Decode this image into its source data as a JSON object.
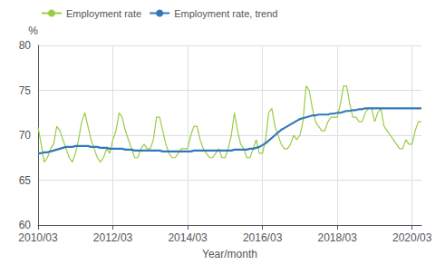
{
  "chart_data": {
    "type": "line",
    "title": "",
    "xlabel": "Year/month",
    "ylabel": "%",
    "categories": [
      "2010/03",
      null,
      null,
      null,
      null,
      null,
      null,
      null,
      null,
      null,
      null,
      null,
      null,
      null,
      null,
      null,
      null,
      null,
      null,
      null,
      null,
      null,
      null,
      null,
      "2012/03",
      null,
      null,
      null,
      null,
      null,
      null,
      null,
      null,
      null,
      null,
      null,
      null,
      null,
      null,
      null,
      null,
      null,
      null,
      null,
      null,
      null,
      null,
      null,
      "2014/03",
      null,
      null,
      null,
      null,
      null,
      null,
      null,
      null,
      null,
      null,
      null,
      null,
      null,
      null,
      null,
      null,
      null,
      null,
      null,
      null,
      null,
      null,
      null,
      "2016/03",
      null,
      null,
      null,
      null,
      null,
      null,
      null,
      null,
      null,
      null,
      null,
      null,
      null,
      null,
      null,
      null,
      null,
      null,
      null,
      null,
      null,
      null,
      null,
      "2018/03",
      null,
      null,
      null,
      null,
      null,
      null,
      null,
      null,
      null,
      null,
      null,
      null,
      null,
      null,
      null,
      null,
      null,
      null,
      null,
      null,
      null,
      null,
      null,
      "2020/03",
      null,
      null,
      null
    ],
    "series": [
      {
        "name": "Employment rate",
        "color": "#99cc44",
        "values": [
          70.9,
          69.0,
          67.0,
          67.5,
          68.5,
          69.0,
          71.0,
          70.5,
          69.5,
          68.5,
          67.5,
          67.0,
          68.0,
          69.5,
          71.5,
          72.5,
          71.0,
          69.5,
          68.5,
          67.5,
          67.0,
          67.5,
          68.5,
          68.0,
          69.5,
          70.5,
          72.5,
          72.0,
          70.5,
          69.5,
          68.5,
          67.5,
          67.5,
          68.5,
          69.0,
          68.5,
          68.5,
          69.5,
          72.0,
          72.0,
          70.5,
          69.0,
          68.0,
          67.5,
          67.5,
          68.0,
          68.5,
          68.5,
          68.5,
          70.0,
          71.0,
          71.0,
          69.5,
          68.5,
          68.0,
          67.5,
          67.5,
          68.0,
          68.5,
          67.5,
          67.5,
          68.5,
          70.0,
          72.5,
          70.5,
          69.0,
          68.5,
          67.5,
          67.5,
          68.5,
          69.5,
          68.0,
          68.0,
          69.5,
          72.5,
          73.0,
          71.0,
          70.0,
          69.0,
          68.5,
          68.5,
          69.0,
          70.0,
          69.5,
          70.0,
          71.5,
          75.5,
          75.0,
          73.0,
          71.5,
          71.0,
          70.5,
          70.5,
          71.5,
          72.0,
          72.0,
          72.0,
          73.5,
          75.5,
          75.5,
          73.5,
          72.0,
          72.0,
          71.5,
          71.5,
          72.5,
          73.0,
          73.0,
          71.5,
          72.5,
          73.0,
          71.0,
          70.5,
          70.0,
          69.5,
          69.0,
          68.5,
          68.5,
          69.5,
          69.0,
          69.0,
          70.5,
          71.5,
          71.5
        ]
      },
      {
        "name": "Employment rate, trend",
        "color": "#3377bb",
        "values": [
          68.0,
          68.0,
          68.1,
          68.1,
          68.2,
          68.3,
          68.4,
          68.5,
          68.6,
          68.7,
          68.7,
          68.7,
          68.8,
          68.8,
          68.8,
          68.8,
          68.8,
          68.7,
          68.7,
          68.7,
          68.6,
          68.6,
          68.6,
          68.5,
          68.5,
          68.5,
          68.5,
          68.5,
          68.4,
          68.4,
          68.4,
          68.3,
          68.3,
          68.3,
          68.3,
          68.3,
          68.3,
          68.3,
          68.3,
          68.3,
          68.2,
          68.2,
          68.2,
          68.2,
          68.2,
          68.2,
          68.2,
          68.2,
          68.2,
          68.2,
          68.3,
          68.3,
          68.3,
          68.3,
          68.3,
          68.3,
          68.3,
          68.3,
          68.3,
          68.3,
          68.3,
          68.3,
          68.3,
          68.4,
          68.4,
          68.4,
          68.4,
          68.4,
          68.5,
          68.5,
          68.6,
          68.7,
          68.9,
          69.1,
          69.4,
          69.7,
          70.0,
          70.3,
          70.6,
          70.8,
          71.0,
          71.2,
          71.4,
          71.6,
          71.8,
          71.9,
          72.0,
          72.1,
          72.2,
          72.2,
          72.3,
          72.3,
          72.3,
          72.3,
          72.4,
          72.4,
          72.5,
          72.5,
          72.6,
          72.7,
          72.7,
          72.8,
          72.8,
          72.9,
          72.9,
          73.0,
          73.0,
          73.0,
          73.0,
          73.0,
          73.0,
          73.0,
          73.0,
          73.0,
          73.0,
          73.0,
          73.0,
          73.0,
          73.0,
          73.0,
          73.0,
          73.0,
          73.0,
          73.0
        ]
      }
    ],
    "ylim": [
      60,
      80
    ],
    "yticks": [
      60,
      65,
      70,
      75,
      80
    ],
    "grid": true,
    "legend": "top"
  }
}
